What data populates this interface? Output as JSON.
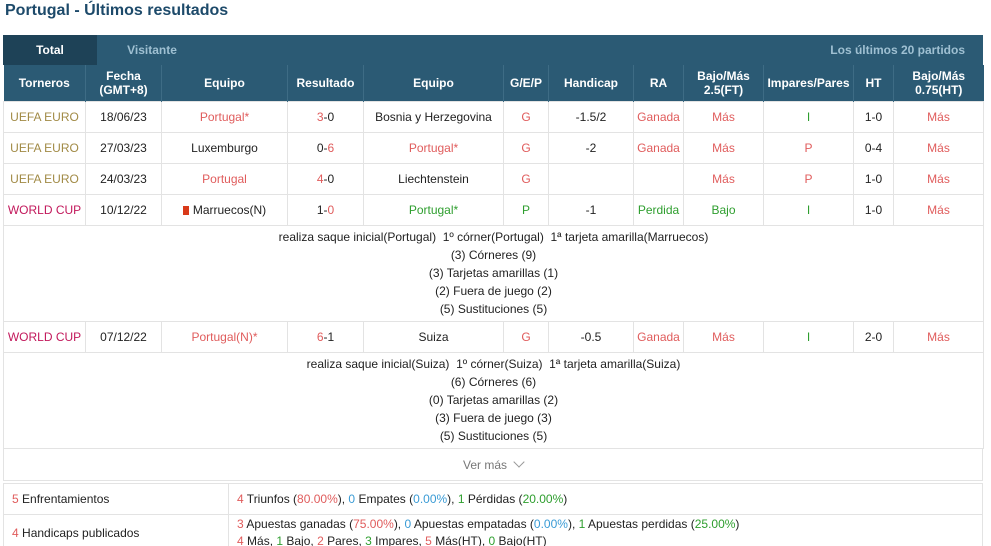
{
  "title": "Portugal - Últimos resultados",
  "tabs": {
    "total": "Total",
    "visitante": "Visitante",
    "last": "Los últimos 20 partidos"
  },
  "headers": [
    "Torneros",
    "Fecha\n(GMT+8)",
    "Equipo",
    "Resultado",
    "Equipo",
    "G/E/P",
    "Handicap",
    "RA",
    "Bajo/Más\n2.5(FT)",
    "Impares/Pares",
    "HT",
    "Bajo/Más\n0.75(HT)"
  ],
  "matches": [
    {
      "comp": "UEFA EURO",
      "date": "18/06/23",
      "home": "Portugal*",
      "home_hl": true,
      "hs": "3",
      "as": "0",
      "away": "Bosnia y Herzegovina",
      "away_hl": false,
      "gep": "G",
      "handicap": "-1.5/2",
      "ra": "Ganada",
      "bm": "Más",
      "ip": "I",
      "ht": "1-0",
      "bm2": "Más"
    },
    {
      "comp": "UEFA EURO",
      "date": "27/03/23",
      "home": "Luxemburgo",
      "home_hl": false,
      "hs": "0",
      "as": "6",
      "away": "Portugal*",
      "away_hl": true,
      "gep": "G",
      "handicap": "-2",
      "ra": "Ganada",
      "bm": "Más",
      "ip": "P",
      "ht": "0-4",
      "bm2": "Más"
    },
    {
      "comp": "UEFA EURO",
      "date": "24/03/23",
      "home": "Portugal",
      "home_hl": true,
      "hs": "4",
      "as": "0",
      "away": "Liechtenstein",
      "away_hl": false,
      "gep": "G",
      "handicap": "",
      "ra": "",
      "bm": "Más",
      "ip": "P",
      "ht": "1-0",
      "bm2": "Más"
    },
    {
      "comp": "WORLD CUP",
      "date": "10/12/22",
      "home": "Marruecos(N)",
      "home_hl": false,
      "home_flag": true,
      "hs": "1",
      "as": "0",
      "away": "Portugal*",
      "away_hl": true,
      "gep": "P",
      "handicap": "-1",
      "ra": "Perdida",
      "bm": "Bajo",
      "ip": "I",
      "ht": "1-0",
      "bm2": "Más",
      "details": [
        "realiza saque inicial(Portugal)  1º córner(Portugal)  1ª tarjeta amarilla(Marruecos)",
        "(3) Córneres (9)",
        "(3) Tarjetas amarillas (1)",
        "(2) Fuera de juego (2)",
        "(5) Sustituciones (5)"
      ]
    },
    {
      "comp": "WORLD CUP",
      "date": "07/12/22",
      "home": "Portugal(N)*",
      "home_hl": true,
      "hs": "6",
      "as": "1",
      "away": "Suiza",
      "away_hl": false,
      "gep": "G",
      "handicap": "-0.5",
      "ra": "Ganada",
      "bm": "Más",
      "ip": "I",
      "ht": "2-0",
      "bm2": "Más",
      "details": [
        "realiza saque inicial(Suiza)  1º córner(Suiza)  1ª tarjeta amarilla(Suiza)",
        "(6) Córneres (6)",
        "(0) Tarjetas amarillas (2)",
        "(3) Fuera de juego (3)",
        "(5) Sustituciones (5)"
      ]
    }
  ],
  "more": "Ver más",
  "summary": {
    "enf_count": "5",
    "enf_label": " Enfrentamientos",
    "wins_n": "4",
    "wins_t": " Triunfos (",
    "wins_p": "80.00%",
    "wins_e": "), ",
    "draws_n": "0",
    "draws_t": " Empates (",
    "draws_p": "0.00%",
    "draws_e": "), ",
    "loss_n": "1",
    "loss_t": " Pérdidas (",
    "loss_p": "20.00%",
    "loss_e": ")",
    "hc_count": "4",
    "hc_label": " Handicaps publicados",
    "bw_n": "3",
    "bw_t": " Apuestas ganadas (",
    "bw_p": "75.00%",
    "bw_e": "), ",
    "bd_n": "0",
    "bd_t": " Apuestas empatadas (",
    "bd_p": "0.00%",
    "bd_e": "), ",
    "bl_n": "1",
    "bl_t": " Apuestas perdidas (",
    "bl_p": "25.00%",
    "bl_e": ")",
    "m_n": "4",
    "m_t": " Más, ",
    "b_n": "1",
    "b_t": " Bajo, ",
    "p_n": "2",
    "p_t": " Pares, ",
    "i_n": "3",
    "i_t": " Impares, ",
    "mht_n": "5",
    "mht_t": " Más(HT), ",
    "bht_n": "0",
    "bht_t": " Bajo(HT)"
  },
  "colors": {
    "header_bg": "#2b5a74",
    "win": "#e05c5c",
    "loss": "#2e9e2e",
    "draw": "#3a9bd5"
  }
}
